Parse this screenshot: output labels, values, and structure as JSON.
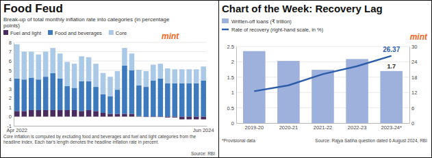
{
  "chart_data": [
    {
      "type": "bar",
      "stacked": true,
      "title": "Food Feud",
      "subtitle": "Break-up of total monthly inflation rate into categories (in percentage points)",
      "brand": "mint",
      "note": "Core inflation is computed by excluding food and beverages and fuel and light categories from the headline index. Each bar's length denotes the headline inflation rate in percent.",
      "source": "Source: RBI",
      "categories": [
        "Apr 2022",
        null,
        null,
        null,
        null,
        null,
        null,
        null,
        null,
        null,
        null,
        null,
        null,
        null,
        null,
        null,
        null,
        null,
        null,
        null,
        null,
        null,
        null,
        null,
        null,
        null,
        "Jun 2024"
      ],
      "series": [
        {
          "name": "Fuel and light",
          "color": "#4b2a5e",
          "values": [
            0.6,
            0.6,
            0.7,
            0.7,
            0.7,
            0.7,
            0.7,
            0.7,
            0.7,
            0.6,
            0.7,
            0.6,
            0.4,
            0.3,
            0.3,
            0.3,
            0.3,
            0.05,
            -0.05,
            -0.05,
            -0.05,
            -0.1,
            -0.1,
            -0.3,
            -0.3,
            -0.3,
            -0.3
          ]
        },
        {
          "name": "Food and beverages",
          "color": "#3d7abd",
          "values": [
            3.5,
            3.4,
            3.5,
            3.3,
            3.6,
            4.0,
            3.4,
            2.6,
            2.4,
            3.2,
            3.1,
            2.6,
            2.0,
            1.9,
            2.6,
            5.2,
            4.7,
            3.3,
            3.2,
            3.9,
            4.1,
            3.6,
            3.6,
            3.6,
            3.6,
            3.6,
            3.9
          ]
        },
        {
          "name": "Core",
          "color": "#a9c9e7",
          "values": [
            3.7,
            3.0,
            2.8,
            2.7,
            2.7,
            2.7,
            2.7,
            2.6,
            2.6,
            2.7,
            2.6,
            2.5,
            2.3,
            2.1,
            2.0,
            1.9,
            1.8,
            1.7,
            1.7,
            1.7,
            1.6,
            1.6,
            1.5,
            1.5,
            1.5,
            1.5,
            1.5
          ]
        }
      ],
      "ylim": [
        -1,
        8
      ],
      "yticks": [
        -1,
        0,
        1,
        2,
        3,
        4,
        5,
        6,
        7,
        8
      ],
      "grid": true,
      "legend": "top left"
    },
    {
      "type": "bar",
      "title": "Chart of the Week: Recovery Lag",
      "brand": "mint",
      "note": "*Provisional data",
      "source": "Source: Rajya Sabha question dated 6 August 2024, RBI",
      "categories": [
        "2019-20",
        "2020-21",
        "2021-22",
        "2022-23",
        "2023-24*"
      ],
      "series": [
        {
          "name": "Written-off loans (₹ trillion)",
          "type": "bar",
          "color": "#9db1dc",
          "values": [
            2.35,
            2.03,
            1.74,
            2.09,
            1.7
          ],
          "value_labels": [
            null,
            null,
            null,
            null,
            "1.7"
          ]
        },
        {
          "name": "Rate of recovery (right-hand scale, in %)",
          "type": "line",
          "color": "#2d5da8",
          "axis": "y2",
          "values": [
            12.5,
            14.8,
            19.2,
            22.3,
            26.37
          ],
          "value_labels": [
            null,
            null,
            null,
            null,
            "26.37"
          ]
        }
      ],
      "ylim": [
        0,
        2.5
      ],
      "yticks": [
        0,
        0.5,
        1,
        1.5,
        2,
        2.5
      ],
      "y2lim": [
        0,
        30
      ],
      "y2ticks": [
        0,
        6,
        12,
        18,
        24,
        30
      ],
      "grid": true,
      "data_labels": true,
      "legend": "top left"
    }
  ]
}
